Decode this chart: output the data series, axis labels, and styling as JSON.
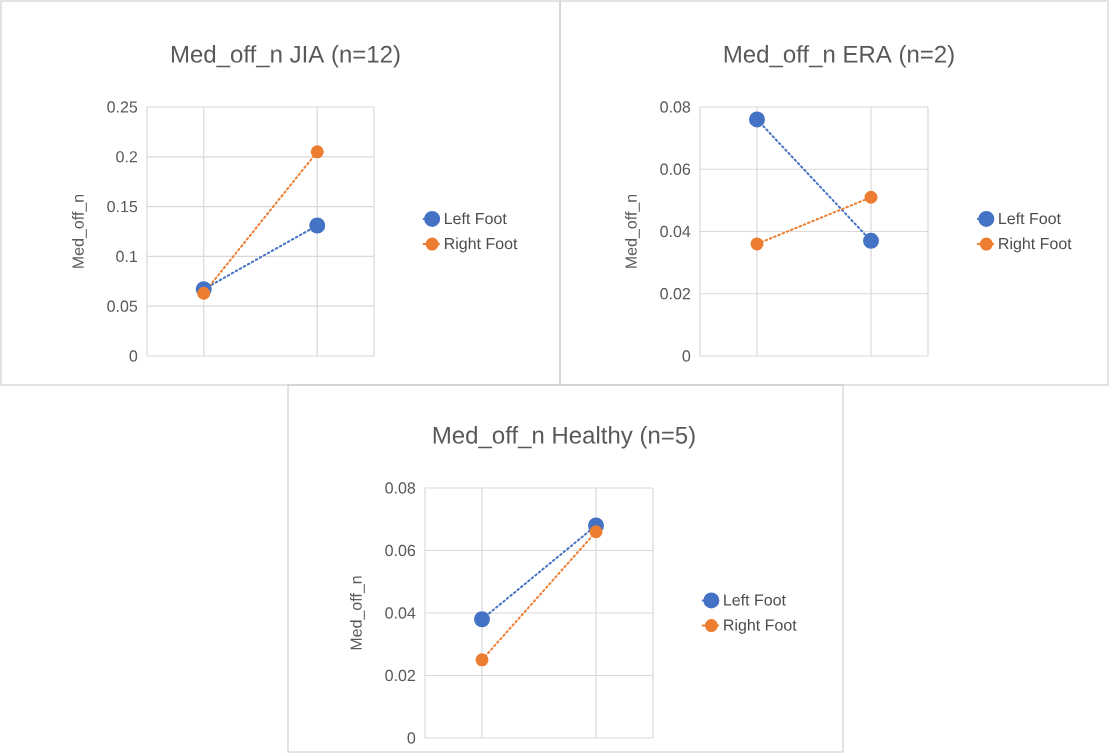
{
  "chart_data": [
    {
      "type": "line",
      "title": "Med_off_n JIA (n=12)",
      "ylabel": "Med_off_n",
      "categories": [
        null,
        null
      ],
      "ylim": [
        0,
        0.25
      ],
      "yticks": [
        0,
        0.05,
        0.1,
        0.15,
        0.2,
        0.25
      ],
      "tick_labels": "y",
      "grid": true,
      "legend": "right",
      "marker": "circle",
      "line_style": "dotted",
      "series": [
        {
          "name": "Left Foot",
          "color": "#4472c4",
          "values": [
            0.067,
            0.131
          ]
        },
        {
          "name": "Right Foot",
          "color": "#ed7d31",
          "values": [
            0.063,
            0.205
          ]
        }
      ]
    },
    {
      "type": "line",
      "title": "Med_off_n ERA (n=2)",
      "ylabel": "Med_off_n",
      "categories": [
        null,
        null
      ],
      "ylim": [
        0,
        0.08
      ],
      "yticks": [
        0,
        0.02,
        0.04,
        0.06,
        0.08
      ],
      "tick_labels": "y",
      "grid": true,
      "legend": "right",
      "marker": "circle",
      "line_style": "dotted",
      "series": [
        {
          "name": "Left Foot",
          "color": "#4472c4",
          "values": [
            0.076,
            0.037
          ]
        },
        {
          "name": "Right Foot",
          "color": "#ed7d31",
          "values": [
            0.036,
            0.051
          ]
        }
      ]
    },
    {
      "type": "line",
      "title": "Med_off_n Healthy (n=5)",
      "ylabel": "Med_off_n",
      "categories": [
        null,
        null
      ],
      "ylim": [
        0,
        0.08
      ],
      "yticks": [
        0,
        0.02,
        0.04,
        0.06,
        0.08
      ],
      "tick_labels": "y",
      "grid": true,
      "legend": "right",
      "marker": "circle",
      "line_style": "dotted",
      "series": [
        {
          "name": "Left Foot",
          "color": "#4472c4",
          "values": [
            0.038,
            0.068
          ]
        },
        {
          "name": "Right Foot",
          "color": "#ed7d31",
          "values": [
            0.025,
            0.066
          ]
        }
      ]
    }
  ]
}
